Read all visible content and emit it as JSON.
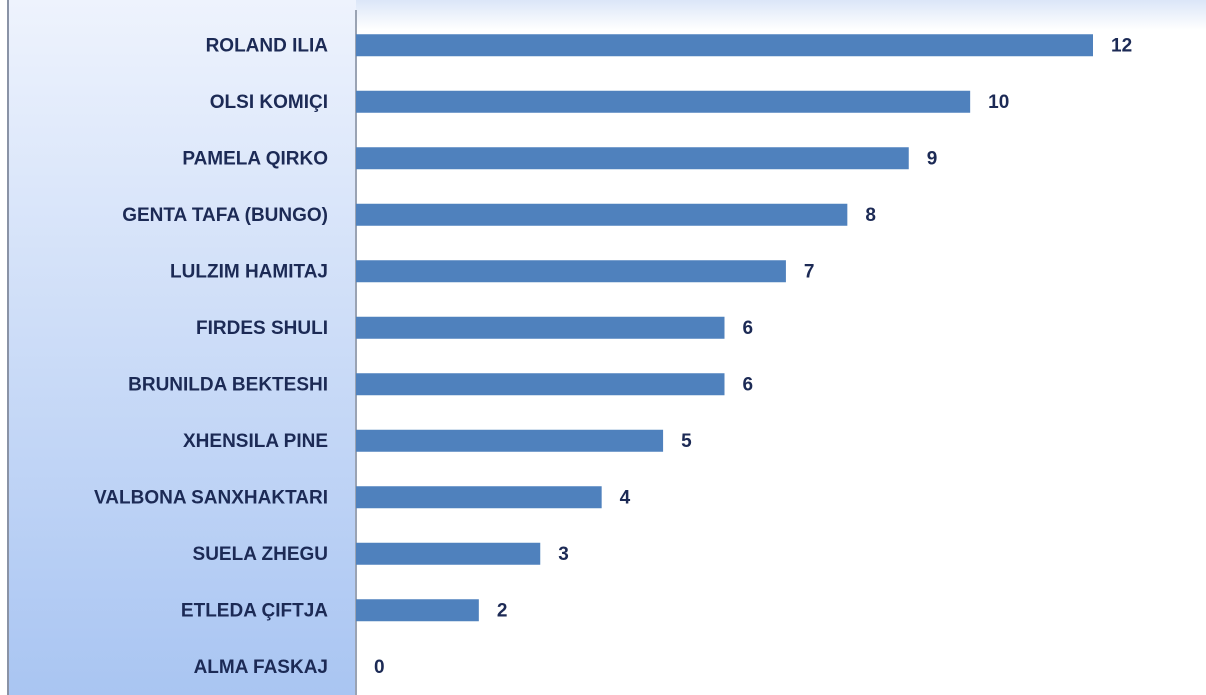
{
  "chart_data": {
    "type": "bar",
    "orientation": "horizontal",
    "categories": [
      "ROLAND ILIA",
      "OLSI KOMIÇI",
      "PAMELA QIRKO",
      "GENTA TAFA (BUNGO)",
      "LULZIM HAMITAJ",
      "FIRDES SHULI",
      "BRUNILDA BEKTESHI",
      "XHENSILA PINE",
      "VALBONA SANXHAKTARI",
      "SUELA ZHEGU",
      "ETLEDA ÇIFTJA",
      "ALMA FASKAJ"
    ],
    "values": [
      12,
      10,
      9,
      8,
      7,
      6,
      6,
      5,
      4,
      3,
      2,
      0
    ],
    "color": "#4f81bd",
    "xlim": [
      0,
      12
    ]
  }
}
